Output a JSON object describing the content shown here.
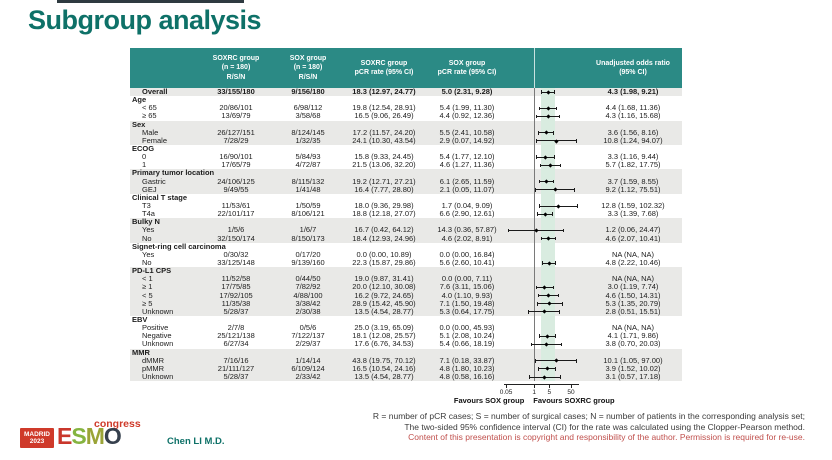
{
  "title": "Subgroup analysis",
  "presenter": "Chen LI M.D.",
  "table": {
    "col_headers": {
      "soxrc_rsn": "SOXRC group\n(n = 180)\nR/S/N",
      "sox_rsn": "SOX group\n(n = 180)\nR/S/N",
      "soxrc_pcr": "SOXRC group\npCR rate (95% CI)",
      "sox_pcr": "SOX group\npCR rate (95% CI)",
      "odds": "Unadjusted odds ratio\n(95% CI)"
    },
    "rows": [
      {
        "label": "Overall",
        "band": "g",
        "bold": true,
        "rsn1": "33/155/180",
        "rsn2": "9/156/180",
        "pcr1": "18.3 (12.97, 24.77)",
        "pcr2": "5.0 (2.31, 9.28)",
        "or_text": "4.3 (1.98, 9.21)",
        "or": 4.3,
        "lo": 1.98,
        "hi": 9.21
      },
      {
        "label": "Age",
        "section": true,
        "band": "w"
      },
      {
        "label": "< 65",
        "band": "w",
        "rsn1": "20/86/101",
        "rsn2": "6/98/112",
        "pcr1": "19.8 (12.54, 28.91)",
        "pcr2": "5.4 (1.99, 11.30)",
        "or_text": "4.4 (1.68, 11.36)",
        "or": 4.4,
        "lo": 1.68,
        "hi": 11.36
      },
      {
        "label": "≥ 65",
        "band": "w",
        "rsn1": "13/69/79",
        "rsn2": "3/58/68",
        "pcr1": "16.5 (9.06, 26.49)",
        "pcr2": "4.4 (0.92, 12.36)",
        "or_text": "4.3 (1.16, 15.68)",
        "or": 4.3,
        "lo": 1.16,
        "hi": 15.68
      },
      {
        "label": "Sex",
        "section": true,
        "band": "g"
      },
      {
        "label": "Male",
        "band": "g",
        "rsn1": "26/127/151",
        "rsn2": "8/124/145",
        "pcr1": "17.2 (11.57, 24.20)",
        "pcr2": "5.5 (2.41, 10.58)",
        "or_text": "3.6 (1.56, 8.16)",
        "or": 3.6,
        "lo": 1.56,
        "hi": 8.16
      },
      {
        "label": "Female",
        "band": "g",
        "rsn1": "7/28/29",
        "rsn2": "1/32/35",
        "pcr1": "24.1 (10.30, 43.54)",
        "pcr2": "2.9 (0.07, 14.92)",
        "or_text": "10.8 (1.24, 94.07)",
        "or": 10.8,
        "lo": 1.24,
        "hi": 94.07
      },
      {
        "label": "ECOG",
        "section": true,
        "band": "w"
      },
      {
        "label": "0",
        "band": "w",
        "rsn1": "16/90/101",
        "rsn2": "5/84/93",
        "pcr1": "15.8 (9.33, 24.45)",
        "pcr2": "5.4 (1.77, 12.10)",
        "or_text": "3.3 (1.16, 9.44)",
        "or": 3.3,
        "lo": 1.16,
        "hi": 9.44
      },
      {
        "label": "1",
        "band": "w",
        "rsn1": "17/65/79",
        "rsn2": "4/72/87",
        "pcr1": "21.5 (13.06, 32.20)",
        "pcr2": "4.6 (1.27, 11.36)",
        "or_text": "5.7 (1.82, 17.75)",
        "or": 5.7,
        "lo": 1.82,
        "hi": 17.75
      },
      {
        "label": "Primary tumor location",
        "section": true,
        "band": "g"
      },
      {
        "label": "Gastric",
        "band": "g",
        "rsn1": "24/106/125",
        "rsn2": "8/115/132",
        "pcr1": "19.2 (12.71, 27.21)",
        "pcr2": "6.1 (2.65, 11.59)",
        "or_text": "3.7 (1.59, 8.55)",
        "or": 3.7,
        "lo": 1.59,
        "hi": 8.55
      },
      {
        "label": "GEJ",
        "band": "g",
        "rsn1": "9/49/55",
        "rsn2": "1/41/48",
        "pcr1": "16.4 (7.77, 28.80)",
        "pcr2": "2.1 (0.05, 11.07)",
        "or_text": "9.2 (1.12, 75.51)",
        "or": 9.2,
        "lo": 1.12,
        "hi": 75.51
      },
      {
        "label": "Clinical T stage",
        "section": true,
        "band": "w"
      },
      {
        "label": "T3",
        "band": "w",
        "rsn1": "11/53/61",
        "rsn2": "1/50/59",
        "pcr1": "18.0 (9.36, 29.98)",
        "pcr2": "1.7 (0.04, 9.09)",
        "or_text": "12.8 (1.59, 102.32)",
        "or": 12.8,
        "lo": 1.59,
        "hi": 102.32
      },
      {
        "label": "T4a",
        "band": "w",
        "rsn1": "22/101/117",
        "rsn2": "8/106/121",
        "pcr1": "18.8 (12.18, 27.07)",
        "pcr2": "6.6 (2.90, 12.61)",
        "or_text": "3.3 (1.39, 7.68)",
        "or": 3.3,
        "lo": 1.39,
        "hi": 7.68
      },
      {
        "label": "Bulky N",
        "section": true,
        "band": "g"
      },
      {
        "label": "Yes",
        "band": "g",
        "rsn1": "1/5/6",
        "rsn2": "1/6/7",
        "pcr1": "16.7 (0.42, 64.12)",
        "pcr2": "14.3 (0.36, 57.87)",
        "or_text": "1.2 (0.06, 24.47)",
        "or": 1.2,
        "lo": 0.06,
        "hi": 24.47
      },
      {
        "label": "No",
        "band": "g",
        "rsn1": "32/150/174",
        "rsn2": "8/150/173",
        "pcr1": "18.4 (12.93, 24.96)",
        "pcr2": "4.6 (2.02, 8.91)",
        "or_text": "4.6 (2.07, 10.41)",
        "or": 4.6,
        "lo": 2.07,
        "hi": 10.41
      },
      {
        "label": "Signet-ring cell carcinoma",
        "section": true,
        "band": "w"
      },
      {
        "label": "Yes",
        "band": "w",
        "rsn1": "0/30/32",
        "rsn2": "0/17/20",
        "pcr1": "0.0 (0.00, 10.89)",
        "pcr2": "0.0 (0.00, 16.84)",
        "or_text": "NA (NA, NA)",
        "or": null,
        "lo": null,
        "hi": null
      },
      {
        "label": "No",
        "band": "w",
        "rsn1": "33/125/148",
        "rsn2": "9/139/160",
        "pcr1": "22.3 (15.87, 29.86)",
        "pcr2": "5.6 (2.60, 10.41)",
        "or_text": "4.8 (2.22, 10.46)",
        "or": 4.8,
        "lo": 2.22,
        "hi": 10.46
      },
      {
        "label": "PD-L1 CPS",
        "section": true,
        "band": "g"
      },
      {
        "label": "< 1",
        "band": "g",
        "rsn1": "11/52/58",
        "rsn2": "0/44/50",
        "pcr1": "19.0 (9.87, 31.41)",
        "pcr2": "0.0 (0.00, 7.11)",
        "or_text": "NA (NA, NA)",
        "or": null,
        "lo": null,
        "hi": null
      },
      {
        "label": "≥ 1",
        "band": "g",
        "rsn1": "17/75/85",
        "rsn2": "7/82/92",
        "pcr1": "20.0 (12.10, 30.08)",
        "pcr2": "7.6 (3.11, 15.06)",
        "or_text": "3.0 (1.19, 7.74)",
        "or": 3.0,
        "lo": 1.19,
        "hi": 7.74
      },
      {
        "label": "< 5",
        "band": "g",
        "rsn1": "17/92/105",
        "rsn2": "4/88/100",
        "pcr1": "16.2 (9.72, 24.65)",
        "pcr2": "4.0 (1.10, 9.93)",
        "or_text": "4.6 (1.50, 14.31)",
        "or": 4.6,
        "lo": 1.5,
        "hi": 14.31
      },
      {
        "label": "≥ 5",
        "band": "g",
        "rsn1": "11/35/38",
        "rsn2": "3/38/42",
        "pcr1": "28.9 (15.42, 45.90)",
        "pcr2": "7.1 (1.50, 19.48)",
        "or_text": "5.3 (1.35, 20.79)",
        "or": 5.3,
        "lo": 1.35,
        "hi": 20.79
      },
      {
        "label": "Unknown",
        "band": "g",
        "rsn1": "5/28/37",
        "rsn2": "2/30/38",
        "pcr1": "13.5 (4.54, 28.77)",
        "pcr2": "5.3 (0.64, 17.75)",
        "or_text": "2.8 (0.51, 15.51)",
        "or": 2.8,
        "lo": 0.51,
        "hi": 15.51
      },
      {
        "label": "EBV",
        "section": true,
        "band": "w"
      },
      {
        "label": "Positive",
        "band": "w",
        "rsn1": "2/7/8",
        "rsn2": "0/5/6",
        "pcr1": "25.0 (3.19, 65.09)",
        "pcr2": "0.0 (0.00, 45.93)",
        "or_text": "NA (NA, NA)",
        "or": null,
        "lo": null,
        "hi": null
      },
      {
        "label": "Negative",
        "band": "w",
        "rsn1": "25/121/138",
        "rsn2": "7/122/137",
        "pcr1": "18.1 (12.08, 25.57)",
        "pcr2": "5.1 (2.08, 10.24)",
        "or_text": "4.1 (1.71, 9.86)",
        "or": 4.1,
        "lo": 1.71,
        "hi": 9.86
      },
      {
        "label": "Unknown",
        "band": "w",
        "rsn1": "6/27/34",
        "rsn2": "2/29/37",
        "pcr1": "17.6 (6.76, 34.53)",
        "pcr2": "5.4 (0.66, 18.19)",
        "or_text": "3.8 (0.70, 20.03)",
        "or": 3.8,
        "lo": 0.7,
        "hi": 20.03
      },
      {
        "label": "MMR",
        "section": true,
        "band": "g"
      },
      {
        "label": "dMMR",
        "band": "g",
        "rsn1": "7/16/16",
        "rsn2": "1/14/14",
        "pcr1": "43.8 (19.75, 70.12)",
        "pcr2": "7.1 (0.18, 33.87)",
        "or_text": "10.1 (1.05, 97.00)",
        "or": 10.1,
        "lo": 1.05,
        "hi": 97.0
      },
      {
        "label": "pMMR",
        "band": "g",
        "rsn1": "21/111/127",
        "rsn2": "6/109/124",
        "pcr1": "16.5 (10.54, 24.16)",
        "pcr2": "4.8 (1.80, 10.23)",
        "or_text": "3.9 (1.52, 10.02)",
        "or": 3.9,
        "lo": 1.52,
        "hi": 10.02
      },
      {
        "label": "Unknown",
        "band": "g",
        "rsn1": "5/28/37",
        "rsn2": "2/33/42",
        "pcr1": "13.5 (4.54, 28.77)",
        "pcr2": "4.8 (0.58, 16.16)",
        "or_text": "3.1 (0.57, 17.18)",
        "or": 3.1,
        "lo": 0.57,
        "hi": 17.18
      }
    ]
  },
  "forest": {
    "scale": "log",
    "ticks": [
      0.05,
      1,
      5,
      50
    ],
    "xlim": [
      0.04,
      200
    ],
    "reference": 1,
    "band": [
      2.0,
      9.2
    ],
    "favours_left": "Favours SOX group",
    "favours_right": "Favours SOXRC group"
  },
  "chart_data": {
    "type": "scatter",
    "subtype": "forest-plot",
    "title": "Unadjusted odds ratio (95% CI)",
    "x_scale": "log",
    "x_ticks": [
      0.05,
      1,
      5,
      50
    ],
    "xlim": [
      0.04,
      200
    ],
    "reference_line": 1,
    "x_axis_labels": {
      "left": "Favours SOX group",
      "right": "Favours SOXRC group"
    },
    "points": [
      {
        "label": "Overall",
        "or": 4.3,
        "ci": [
          1.98,
          9.21
        ]
      },
      {
        "label": "Age < 65",
        "or": 4.4,
        "ci": [
          1.68,
          11.36
        ]
      },
      {
        "label": "Age ≥ 65",
        "or": 4.3,
        "ci": [
          1.16,
          15.68
        ]
      },
      {
        "label": "Sex Male",
        "or": 3.6,
        "ci": [
          1.56,
          8.16
        ]
      },
      {
        "label": "Sex Female",
        "or": 10.8,
        "ci": [
          1.24,
          94.07
        ]
      },
      {
        "label": "ECOG 0",
        "or": 3.3,
        "ci": [
          1.16,
          9.44
        ]
      },
      {
        "label": "ECOG 1",
        "or": 5.7,
        "ci": [
          1.82,
          17.75
        ]
      },
      {
        "label": "Primary tumor location Gastric",
        "or": 3.7,
        "ci": [
          1.59,
          8.55
        ]
      },
      {
        "label": "Primary tumor location GEJ",
        "or": 9.2,
        "ci": [
          1.12,
          75.51
        ]
      },
      {
        "label": "Clinical T stage T3",
        "or": 12.8,
        "ci": [
          1.59,
          102.32
        ]
      },
      {
        "label": "Clinical T stage T4a",
        "or": 3.3,
        "ci": [
          1.39,
          7.68
        ]
      },
      {
        "label": "Bulky N Yes",
        "or": 1.2,
        "ci": [
          0.06,
          24.47
        ]
      },
      {
        "label": "Bulky N No",
        "or": 4.6,
        "ci": [
          2.07,
          10.41
        ]
      },
      {
        "label": "Signet-ring cell carcinoma Yes",
        "or": null,
        "ci": null
      },
      {
        "label": "Signet-ring cell carcinoma No",
        "or": 4.8,
        "ci": [
          2.22,
          10.46
        ]
      },
      {
        "label": "PD-L1 CPS < 1",
        "or": null,
        "ci": null
      },
      {
        "label": "PD-L1 CPS ≥ 1",
        "or": 3.0,
        "ci": [
          1.19,
          7.74
        ]
      },
      {
        "label": "PD-L1 CPS < 5",
        "or": 4.6,
        "ci": [
          1.5,
          14.31
        ]
      },
      {
        "label": "PD-L1 CPS ≥ 5",
        "or": 5.3,
        "ci": [
          1.35,
          20.79
        ]
      },
      {
        "label": "PD-L1 CPS Unknown",
        "or": 2.8,
        "ci": [
          0.51,
          15.51
        ]
      },
      {
        "label": "EBV Positive",
        "or": null,
        "ci": null
      },
      {
        "label": "EBV Negative",
        "or": 4.1,
        "ci": [
          1.71,
          9.86
        ]
      },
      {
        "label": "EBV Unknown",
        "or": 3.8,
        "ci": [
          0.7,
          20.03
        ]
      },
      {
        "label": "MMR dMMR",
        "or": 10.1,
        "ci": [
          1.05,
          97.0
        ]
      },
      {
        "label": "MMR pMMR",
        "or": 3.9,
        "ci": [
          1.52,
          10.02
        ]
      },
      {
        "label": "MMR Unknown",
        "or": 3.1,
        "ci": [
          0.57,
          17.18
        ]
      }
    ]
  },
  "footnotes": {
    "line1": "R = number of pCR cases; S = number of surgical cases; N = number of patients in the corresponding analysis set;",
    "line2": "The two-sided 95% confidence interval (CI) for the rate was calculated using the Clopper-Pearson method.",
    "line3": "Content of this presentation is copyright and responsibility of the author. Permission is required for re-use."
  },
  "logo": {
    "congress": "congress",
    "city": "MADRID",
    "year": "2023",
    "letters": [
      {
        "ch": "E",
        "color": "#c9372c"
      },
      {
        "ch": "S",
        "color": "#85b440"
      },
      {
        "ch": "M",
        "color": "#9aa437"
      },
      {
        "ch": "O",
        "color": "#36404d"
      }
    ]
  },
  "colors": {
    "accent_teal": "#0e7168",
    "header_teal": "#2b8a85",
    "row_stripe": "#e9e9e7",
    "band_green": "#d9ece0",
    "footnote_red": "#c0504d",
    "logo_red": "#cf3a2a"
  }
}
